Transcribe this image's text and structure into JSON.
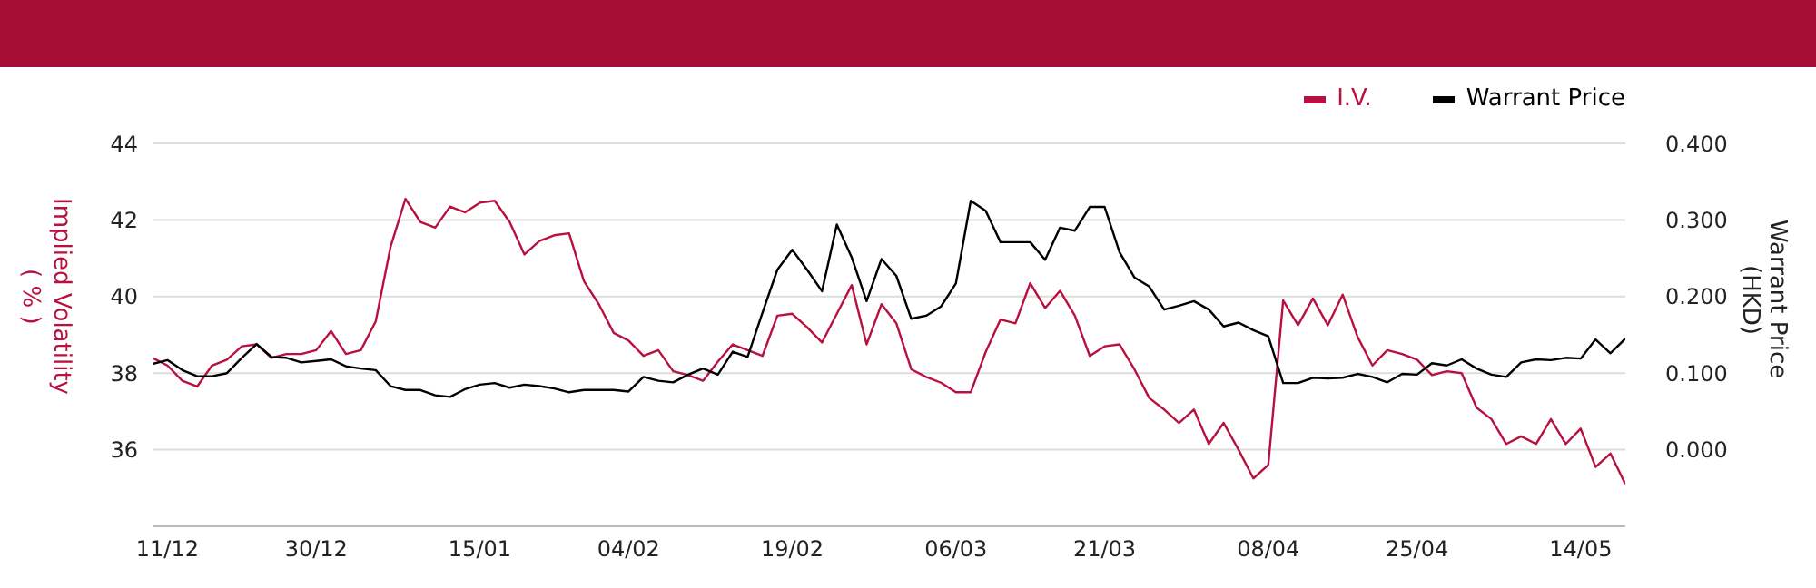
{
  "chart_data": {
    "type": "line",
    "ylabel": "Implied Volatility\n( % )",
    "y2label": "Warrant Price (HKD)",
    "categories": [
      null,
      "11/12",
      null,
      null,
      null,
      null,
      null,
      null,
      null,
      null,
      null,
      "30/12",
      null,
      null,
      null,
      null,
      null,
      null,
      null,
      null,
      null,
      null,
      "15/01",
      null,
      null,
      null,
      null,
      null,
      null,
      null,
      null,
      null,
      "04/02",
      null,
      null,
      null,
      null,
      null,
      null,
      null,
      null,
      null,
      null,
      "19/02",
      null,
      null,
      null,
      null,
      null,
      null,
      null,
      null,
      null,
      null,
      "06/03",
      null,
      null,
      null,
      null,
      null,
      null,
      null,
      null,
      null,
      "21/03",
      null,
      null,
      null,
      null,
      null,
      null,
      null,
      null,
      null,
      null,
      "08/04",
      null,
      null,
      null,
      null,
      null,
      null,
      null,
      null,
      null,
      "25/04",
      null,
      null,
      null,
      null,
      null,
      null,
      null,
      null,
      null,
      null,
      "14/05",
      null,
      null,
      null
    ],
    "series": [
      {
        "name": "I.V.",
        "color": "#b8113f",
        "values": [
          38.4,
          38.2,
          37.8,
          37.65,
          38.2,
          38.35,
          38.7,
          38.75,
          38.4,
          38.5,
          38.5,
          38.6,
          39.1,
          38.5,
          38.6,
          39.35,
          41.3,
          42.55,
          41.95,
          41.8,
          42.35,
          42.2,
          42.45,
          42.5,
          41.95,
          41.1,
          41.45,
          41.6,
          41.65,
          40.4,
          39.8,
          39.05,
          38.85,
          38.45,
          38.6,
          38.05,
          37.95,
          37.8,
          38.3,
          38.75,
          38.6,
          38.45,
          39.5,
          39.55,
          39.2,
          38.8,
          39.55,
          40.3,
          38.75,
          39.8,
          39.3,
          38.1,
          37.9,
          37.75,
          37.5,
          37.5,
          38.55,
          39.4,
          39.3,
          40.35,
          39.7,
          40.15,
          39.5,
          38.45,
          38.7,
          38.75,
          38.1,
          37.35,
          37.05,
          36.7,
          37.05,
          36.15,
          36.7,
          36,
          35.25,
          35.6,
          39.9,
          39.25,
          39.95,
          39.25,
          40.05,
          38.95,
          38.2,
          38.6,
          38.5,
          38.35,
          37.95,
          38.05,
          38,
          37.1,
          36.8,
          36.15,
          36.35,
          36.15,
          36.8,
          36.15,
          36.55,
          35.55,
          35.9,
          35.1
        ]
      },
      {
        "name": "Warrant Price",
        "color": "#000000",
        "axis": "y2",
        "values": [
          0.112,
          0.117,
          0.104,
          0.096,
          0.096,
          0.1,
          0.12,
          0.138,
          0.121,
          0.12,
          0.114,
          0.116,
          0.118,
          0.109,
          0.106,
          0.104,
          0.083,
          0.078,
          0.078,
          0.071,
          0.069,
          0.079,
          0.085,
          0.087,
          0.081,
          0.085,
          0.083,
          0.08,
          0.075,
          0.078,
          0.078,
          0.078,
          0.076,
          0.095,
          0.09,
          0.088,
          0.098,
          0.106,
          0.098,
          0.128,
          0.121,
          0.179,
          0.235,
          0.261,
          0.235,
          0.207,
          0.294,
          0.251,
          0.194,
          0.249,
          0.227,
          0.171,
          0.175,
          0.187,
          0.217,
          0.325,
          0.312,
          0.271,
          0.271,
          0.271,
          0.248,
          0.29,
          0.286,
          0.317,
          0.317,
          0.258,
          0.225,
          0.213,
          0.183,
          0.188,
          0.194,
          0.183,
          0.161,
          0.166,
          0.156,
          0.148,
          0.087,
          0.087,
          0.094,
          0.093,
          0.094,
          0.099,
          0.095,
          0.088,
          0.099,
          0.098,
          0.113,
          0.11,
          0.118,
          0.106,
          0.098,
          0.095,
          0.114,
          0.118,
          0.117,
          0.12,
          0.119,
          0.144,
          0.126,
          0.145
        ]
      }
    ],
    "ylim": [
      34,
      44
    ],
    "yticks": [
      36,
      38,
      40,
      42,
      44
    ],
    "y2lim": [
      -0.1,
      0.4
    ],
    "y2ticks": [
      {
        "value": 0,
        "label": "0.000"
      },
      {
        "value": 0.1,
        "label": "0.100"
      },
      {
        "value": 0.2,
        "label": "0.200"
      },
      {
        "value": 0.3,
        "label": "0.300"
      },
      {
        "value": 0.4,
        "label": "0.400"
      }
    ],
    "grid": "y",
    "legend": "top right",
    "marker": "none",
    "line_style": "solid"
  }
}
